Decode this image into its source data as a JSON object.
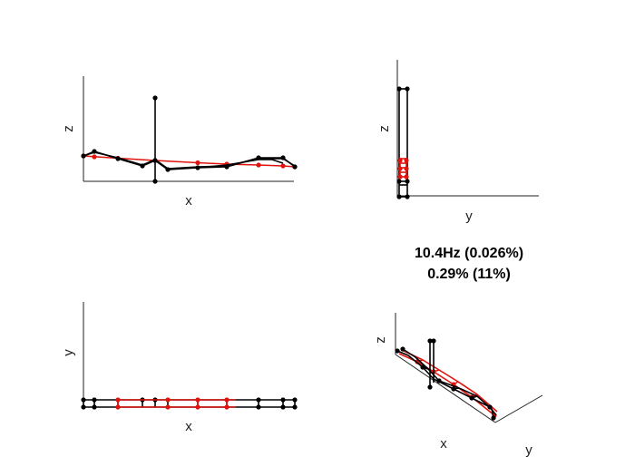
{
  "colors": {
    "deformed": "#000000",
    "undeformed": "#e0140e",
    "axes": "#222222"
  },
  "views": {
    "xz": {
      "h_label": "x",
      "v_label": "z"
    },
    "yz": {
      "h_label": "y",
      "v_label": "z"
    },
    "xy": {
      "h_label": "x",
      "v_label": "y"
    },
    "iso": {
      "x_label": "x",
      "y_label": "y",
      "z_label": "z"
    }
  },
  "mode_info": {
    "frequency": "10.4Hz (0.026%)",
    "participation": "0.29% (11%)"
  }
}
